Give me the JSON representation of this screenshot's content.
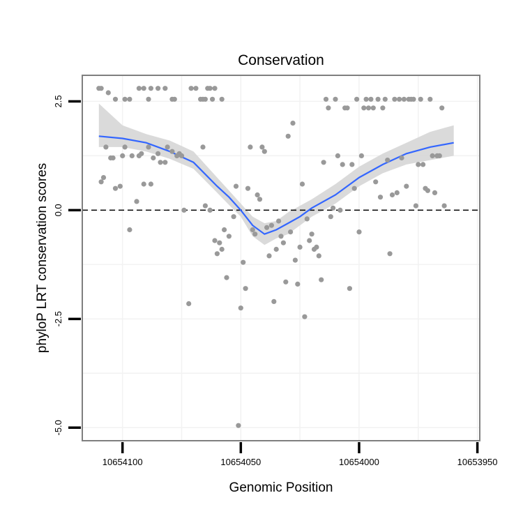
{
  "chart_data": {
    "type": "scatter",
    "title": "Conservation",
    "xlabel": "Genomic Position",
    "ylabel": "phyloP LRT conservation scores",
    "x_axis_reversed": true,
    "xlim": [
      10654117,
      10653949
    ],
    "ylim": [
      -5.3,
      3.1
    ],
    "x_ticks": [
      10654100,
      10654050,
      10654000,
      10653950
    ],
    "x_tick_labels": [
      "10654100",
      "10654050",
      "10654000",
      "10653950"
    ],
    "y_ticks": [
      2.5,
      0.0,
      -2.5,
      -5.0
    ],
    "y_tick_labels": [
      "2.5",
      "0.0",
      "-2.5",
      "-5.0"
    ],
    "reference_line": {
      "y": 0,
      "style": "dashed"
    },
    "grid": true,
    "colors": {
      "points": "#999999",
      "smooth_line": "#3366ff",
      "confidence_band": "#d6d6d6",
      "panel_border": "#7f7f7f",
      "grid": "#f2f2f2",
      "reference_line": "#000000"
    },
    "points": [
      {
        "x": 10654110,
        "y": 2.8
      },
      {
        "x": 10654109,
        "y": 2.8
      },
      {
        "x": 10654106,
        "y": 2.7
      },
      {
        "x": 10654103,
        "y": 2.55
      },
      {
        "x": 10654099,
        "y": 2.55
      },
      {
        "x": 10654097,
        "y": 2.55
      },
      {
        "x": 10654093,
        "y": 2.8
      },
      {
        "x": 10654091,
        "y": 2.8
      },
      {
        "x": 10654089,
        "y": 2.55
      },
      {
        "x": 10654088,
        "y": 2.8
      },
      {
        "x": 10654085,
        "y": 2.8
      },
      {
        "x": 10654082,
        "y": 2.8
      },
      {
        "x": 10654079,
        "y": 2.55
      },
      {
        "x": 10654078,
        "y": 2.55
      },
      {
        "x": 10654071,
        "y": 2.8
      },
      {
        "x": 10654069,
        "y": 2.8
      },
      {
        "x": 10654067,
        "y": 2.55
      },
      {
        "x": 10654066,
        "y": 2.55
      },
      {
        "x": 10654065,
        "y": 2.55
      },
      {
        "x": 10654064,
        "y": 2.8
      },
      {
        "x": 10654063,
        "y": 2.8
      },
      {
        "x": 10654062,
        "y": 2.55
      },
      {
        "x": 10654061,
        "y": 2.8
      },
      {
        "x": 10654058,
        "y": 2.55
      },
      {
        "x": 10654109,
        "y": 0.65
      },
      {
        "x": 10654108,
        "y": 0.75
      },
      {
        "x": 10654107,
        "y": 1.45
      },
      {
        "x": 10654105,
        "y": 1.2
      },
      {
        "x": 10654104,
        "y": 1.2
      },
      {
        "x": 10654103,
        "y": 0.5
      },
      {
        "x": 10654101,
        "y": 0.55
      },
      {
        "x": 10654100,
        "y": 1.25
      },
      {
        "x": 10654099,
        "y": 1.45
      },
      {
        "x": 10654097,
        "y": -0.45
      },
      {
        "x": 10654096,
        "y": 1.25
      },
      {
        "x": 10654094,
        "y": 0.2
      },
      {
        "x": 10654093,
        "y": 1.25
      },
      {
        "x": 10654092,
        "y": 1.3
      },
      {
        "x": 10654091,
        "y": 0.6
      },
      {
        "x": 10654089,
        "y": 1.45
      },
      {
        "x": 10654088,
        "y": 0.6
      },
      {
        "x": 10654087,
        "y": 1.2
      },
      {
        "x": 10654085,
        "y": 1.3
      },
      {
        "x": 10654084,
        "y": 1.1
      },
      {
        "x": 10654082,
        "y": 1.1
      },
      {
        "x": 10654081,
        "y": 1.45
      },
      {
        "x": 10654079,
        "y": 1.35
      },
      {
        "x": 10654077,
        "y": 1.25
      },
      {
        "x": 10654076,
        "y": 1.3
      },
      {
        "x": 10654075,
        "y": 1.25
      },
      {
        "x": 10654074,
        "y": 0.0
      },
      {
        "x": 10654072,
        "y": -2.15
      },
      {
        "x": 10654066,
        "y": 1.45
      },
      {
        "x": 10654065,
        "y": 0.1
      },
      {
        "x": 10654063,
        "y": 0.0
      },
      {
        "x": 10654061,
        "y": -0.7
      },
      {
        "x": 10654060,
        "y": -1.0
      },
      {
        "x": 10654059,
        "y": -0.75
      },
      {
        "x": 10654058,
        "y": -0.9
      },
      {
        "x": 10654057,
        "y": -0.45
      },
      {
        "x": 10654056,
        "y": -1.55
      },
      {
        "x": 10654055,
        "y": -0.6
      },
      {
        "x": 10654053,
        "y": -0.15
      },
      {
        "x": 10654052,
        "y": 0.55
      },
      {
        "x": 10654051,
        "y": -4.95
      },
      {
        "x": 10654050,
        "y": -2.25
      },
      {
        "x": 10654049,
        "y": -1.2
      },
      {
        "x": 10654048,
        "y": -1.8
      },
      {
        "x": 10654047,
        "y": 0.5
      },
      {
        "x": 10654046,
        "y": 1.45
      },
      {
        "x": 10654045,
        "y": -0.45
      },
      {
        "x": 10654044,
        "y": -0.55
      },
      {
        "x": 10654043,
        "y": 0.35
      },
      {
        "x": 10654042,
        "y": 0.25
      },
      {
        "x": 10654041,
        "y": 1.45
      },
      {
        "x": 10654040,
        "y": 1.35
      },
      {
        "x": 10654039,
        "y": -0.4
      },
      {
        "x": 10654038,
        "y": -1.05
      },
      {
        "x": 10654037,
        "y": -0.35
      },
      {
        "x": 10654036,
        "y": -2.1
      },
      {
        "x": 10654035,
        "y": -0.9
      },
      {
        "x": 10654034,
        "y": -0.25
      },
      {
        "x": 10654033,
        "y": -0.6
      },
      {
        "x": 10654032,
        "y": -0.75
      },
      {
        "x": 10654031,
        "y": -1.65
      },
      {
        "x": 10654030,
        "y": 1.7
      },
      {
        "x": 10654029,
        "y": -0.5
      },
      {
        "x": 10654028,
        "y": 2.0
      },
      {
        "x": 10654027,
        "y": -1.15
      },
      {
        "x": 10654026,
        "y": -1.7
      },
      {
        "x": 10654025,
        "y": -0.85
      },
      {
        "x": 10654024,
        "y": 0.6
      },
      {
        "x": 10654023,
        "y": -2.45
      },
      {
        "x": 10654022,
        "y": -0.2
      },
      {
        "x": 10654021,
        "y": -0.7
      },
      {
        "x": 10654020,
        "y": -0.55
      },
      {
        "x": 10654019,
        "y": -0.9
      },
      {
        "x": 10654018,
        "y": -0.85
      },
      {
        "x": 10654017,
        "y": -1.05
      },
      {
        "x": 10654016,
        "y": -1.6
      },
      {
        "x": 10654015,
        "y": 1.1
      },
      {
        "x": 10654014,
        "y": 2.55
      },
      {
        "x": 10654013,
        "y": 2.35
      },
      {
        "x": 10654012,
        "y": -0.15
      },
      {
        "x": 10654011,
        "y": 0.05
      },
      {
        "x": 10654010,
        "y": 2.55
      },
      {
        "x": 10654009,
        "y": 1.25
      },
      {
        "x": 10654008,
        "y": 0.0
      },
      {
        "x": 10654007,
        "y": 1.05
      },
      {
        "x": 10654006,
        "y": 2.35
      },
      {
        "x": 10654005,
        "y": 2.35
      },
      {
        "x": 10654004,
        "y": -1.8
      },
      {
        "x": 10654003,
        "y": 1.05
      },
      {
        "x": 10654002,
        "y": 0.5
      },
      {
        "x": 10654001,
        "y": 2.55
      },
      {
        "x": 10654000,
        "y": -0.5
      },
      {
        "x": 10653999,
        "y": 1.25
      },
      {
        "x": 10653998,
        "y": 2.35
      },
      {
        "x": 10653997,
        "y": 2.55
      },
      {
        "x": 10653996,
        "y": 2.35
      },
      {
        "x": 10653995,
        "y": 2.55
      },
      {
        "x": 10653994,
        "y": 2.35
      },
      {
        "x": 10653993,
        "y": 0.65
      },
      {
        "x": 10653992,
        "y": 2.55
      },
      {
        "x": 10653991,
        "y": 0.3
      },
      {
        "x": 10653990,
        "y": 2.35
      },
      {
        "x": 10653989,
        "y": 2.55
      },
      {
        "x": 10653988,
        "y": 1.15
      },
      {
        "x": 10653987,
        "y": -1.0
      },
      {
        "x": 10653986,
        "y": 0.35
      },
      {
        "x": 10653985,
        "y": 2.55
      },
      {
        "x": 10653984,
        "y": 0.4
      },
      {
        "x": 10653983,
        "y": 2.55
      },
      {
        "x": 10653982,
        "y": 1.2
      },
      {
        "x": 10653981,
        "y": 2.55
      },
      {
        "x": 10653980,
        "y": 0.55
      },
      {
        "x": 10653979,
        "y": 2.55
      },
      {
        "x": 10653978,
        "y": 2.55
      },
      {
        "x": 10653977,
        "y": 2.55
      },
      {
        "x": 10653976,
        "y": 0.1
      },
      {
        "x": 10653975,
        "y": 1.05
      },
      {
        "x": 10653974,
        "y": 2.55
      },
      {
        "x": 10653973,
        "y": 1.05
      },
      {
        "x": 10653972,
        "y": 0.5
      },
      {
        "x": 10653971,
        "y": 0.45
      },
      {
        "x": 10653970,
        "y": 2.55
      },
      {
        "x": 10653969,
        "y": 1.25
      },
      {
        "x": 10653968,
        "y": 0.4
      },
      {
        "x": 10653967,
        "y": 1.25
      },
      {
        "x": 10653966,
        "y": 1.25
      },
      {
        "x": 10653965,
        "y": 2.35
      },
      {
        "x": 10653964,
        "y": 0.1
      }
    ],
    "smooth": {
      "x": [
        10654110,
        10654100,
        10654090,
        10654080,
        10654070,
        10654060,
        10654055,
        10654050,
        10654045,
        10654040,
        10654035,
        10654030,
        10654025,
        10654020,
        10654010,
        10654000,
        10653990,
        10653980,
        10653970,
        10653960
      ],
      "y": [
        1.7,
        1.65,
        1.55,
        1.35,
        1.1,
        0.55,
        0.3,
        0.0,
        -0.35,
        -0.55,
        -0.45,
        -0.3,
        -0.15,
        0.05,
        0.35,
        0.75,
        1.05,
        1.3,
        1.45,
        1.55
      ],
      "lower": [
        1.45,
        1.45,
        1.35,
        1.18,
        0.95,
        0.4,
        0.12,
        -0.15,
        -0.6,
        -0.8,
        -0.65,
        -0.55,
        -0.35,
        -0.15,
        0.15,
        0.55,
        0.85,
        1.05,
        1.15,
        1.25
      ],
      "upper": [
        2.45,
        1.95,
        1.75,
        1.6,
        1.35,
        0.75,
        0.45,
        0.15,
        -0.15,
        -0.3,
        -0.25,
        -0.05,
        0.1,
        0.25,
        0.6,
        1.0,
        1.3,
        1.55,
        1.8,
        1.95
      ]
    }
  }
}
